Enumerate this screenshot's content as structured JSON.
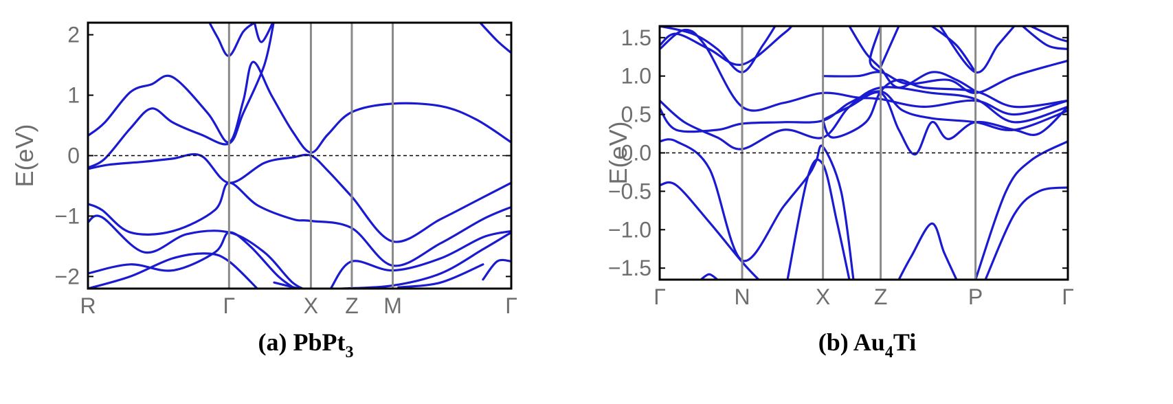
{
  "chart_data": [
    {
      "type": "line",
      "caption": {
        "prefix": "(a) PbPt",
        "sub": "3",
        "suffix": ""
      },
      "ylabel": "E(eV)",
      "ylim": [
        -2.2,
        2.2
      ],
      "yticks": [
        2,
        1,
        0,
        -1,
        -2
      ],
      "ytick_labels": [
        "2",
        "1",
        "0",
        "−1",
        "−2"
      ],
      "kpoints": [
        {
          "label": "R",
          "x": 0
        },
        {
          "label": "Γ",
          "x": 1
        },
        {
          "label": "X",
          "x": 1.58
        },
        {
          "label": "Z",
          "x": 1.87
        },
        {
          "label": "M",
          "x": 2.16
        },
        {
          "label": "Γ",
          "x": 3
        }
      ],
      "fermi_level": 0,
      "line_color": "#1a1ad0",
      "bands": [
        [
          [
            0,
            0.33
          ],
          [
            0.12,
            0.55
          ],
          [
            0.3,
            1.05
          ],
          [
            0.45,
            1.18
          ],
          [
            0.6,
            1.3
          ],
          [
            0.85,
            0.7
          ],
          [
            1,
            0.22
          ],
          [
            1.1,
            0.9
          ],
          [
            1.17,
            1.55
          ],
          [
            1.3,
            1.0
          ],
          [
            1.45,
            0.4
          ],
          [
            1.58,
            0.05
          ],
          [
            1.7,
            0.35
          ],
          [
            1.87,
            0.72
          ],
          [
            2.16,
            0.86
          ],
          [
            2.5,
            0.82
          ],
          [
            2.75,
            0.6
          ],
          [
            3,
            0.22
          ]
        ],
        [
          [
            0,
            -0.2
          ],
          [
            0.12,
            -0.05
          ],
          [
            0.3,
            0.45
          ],
          [
            0.45,
            0.78
          ],
          [
            0.6,
            0.55
          ],
          [
            0.8,
            0.35
          ],
          [
            1,
            0.2
          ],
          [
            1.1,
            0.7
          ],
          [
            1.25,
            1.5
          ],
          [
            1.32,
            2.25
          ]
        ],
        [
          [
            0,
            -0.22
          ],
          [
            0.15,
            -0.15
          ],
          [
            0.4,
            -0.1
          ],
          [
            0.6,
            -0.05
          ],
          [
            0.8,
            0
          ],
          [
            1,
            -0.45
          ],
          [
            1.25,
            -0.12
          ],
          [
            1.45,
            -0.03
          ],
          [
            1.58,
            0
          ],
          [
            1.7,
            -0.25
          ],
          [
            1.87,
            -0.68
          ],
          [
            2.16,
            -1.42
          ],
          [
            2.5,
            -1.05
          ],
          [
            2.75,
            -0.75
          ],
          [
            3,
            -0.45
          ]
        ],
        [
          [
            0,
            -0.8
          ],
          [
            0.1,
            -0.9
          ],
          [
            0.3,
            -1.27
          ],
          [
            0.6,
            -1.25
          ],
          [
            0.9,
            -0.9
          ],
          [
            1,
            -0.45
          ],
          [
            1.2,
            -0.82
          ],
          [
            1.45,
            -1.05
          ],
          [
            1.58,
            -1.08
          ],
          [
            1.87,
            -1.2
          ],
          [
            2.16,
            -1.82
          ],
          [
            2.5,
            -1.45
          ],
          [
            2.8,
            -1.05
          ],
          [
            3,
            -0.85
          ]
        ],
        [
          [
            0,
            -1.1
          ],
          [
            0.1,
            -1.02
          ],
          [
            0.4,
            -1.6
          ],
          [
            0.7,
            -1.3
          ],
          [
            1,
            -1.27
          ],
          [
            1.25,
            -1.6
          ],
          [
            1.45,
            -2.1
          ],
          [
            1.58,
            -2.25
          ]
        ],
        [
          [
            0,
            -1.95
          ],
          [
            0.3,
            -1.8
          ],
          [
            0.6,
            -1.9
          ],
          [
            0.9,
            -1.6
          ],
          [
            1,
            -1.27
          ],
          [
            1.15,
            -1.5
          ],
          [
            1.35,
            -2.0
          ],
          [
            1.5,
            -2.25
          ]
        ],
        [
          [
            0,
            -2.2
          ],
          [
            0.3,
            -2.0
          ],
          [
            0.6,
            -1.7
          ],
          [
            0.85,
            -1.62
          ],
          [
            1,
            -1.75
          ],
          [
            1.2,
            -2.2
          ]
        ],
        [
          [
            1.72,
            -2.2
          ],
          [
            1.87,
            -1.75
          ],
          [
            2.16,
            -1.9
          ],
          [
            2.5,
            -1.7
          ],
          [
            2.8,
            -1.35
          ],
          [
            3,
            -1.25
          ]
        ],
        [
          [
            1.8,
            -2.2
          ],
          [
            2.16,
            -2.15
          ],
          [
            2.5,
            -1.95
          ],
          [
            2.8,
            -1.55
          ],
          [
            3,
            -1.27
          ]
        ],
        [
          [
            2.8,
            -2.05
          ],
          [
            2.9,
            -1.75
          ],
          [
            3,
            -1.75
          ]
        ],
        [
          [
            2.76,
            2.25
          ],
          [
            2.9,
            1.9
          ],
          [
            3,
            1.7
          ]
        ],
        [
          [
            0.85,
            2.25
          ],
          [
            0.92,
            1.95
          ],
          [
            1,
            1.65
          ],
          [
            1.1,
            2.05
          ],
          [
            1.18,
            2.2
          ]
        ],
        [
          [
            1.18,
            2.2
          ],
          [
            1.23,
            1.88
          ],
          [
            1.32,
            2.25
          ]
        ],
        [
          [
            1.32,
            -2.1
          ],
          [
            1.58,
            -2.25
          ]
        ],
        [
          [
            2.2,
            -2.18
          ],
          [
            2.5,
            -2.1
          ],
          [
            2.8,
            -1.8
          ]
        ]
      ]
    },
    {
      "type": "line",
      "caption": {
        "prefix": "(b) Au",
        "sub": "4",
        "suffix": "Ti"
      },
      "ylabel": "E(eV)",
      "ylim": [
        -1.65,
        1.65
      ],
      "yticks": [
        1.5,
        1.0,
        0.5,
        0.0,
        -0.5,
        -1.0,
        -1.5
      ],
      "ytick_labels": [
        "1.5",
        "1.0",
        "0.5",
        "0.0",
        "−0.5",
        "−1.0",
        "−1.5"
      ],
      "kpoints": [
        {
          "label": "Γ",
          "x": 0
        },
        {
          "label": "N",
          "x": 1
        },
        {
          "label": "X",
          "x": 1.98
        },
        {
          "label": "Z",
          "x": 2.68
        },
        {
          "label": "P",
          "x": 3.83
        },
        {
          "label": "Γ",
          "x": 4.95
        }
      ],
      "fermi_level": 0,
      "line_color": "#1a1ad0",
      "bands": [
        [
          [
            0,
            1.35
          ],
          [
            0.3,
            1.6
          ],
          [
            0.55,
            1.4
          ],
          [
            1,
            0.6
          ],
          [
            1.5,
            0.65
          ],
          [
            1.98,
            0.78
          ],
          [
            2.4,
            0.72
          ],
          [
            2.68,
            0.7
          ],
          [
            3.2,
            0.6
          ],
          [
            3.83,
            0.68
          ],
          [
            4.3,
            0.5
          ],
          [
            4.95,
            0.68
          ]
        ],
        [
          [
            0,
            1.4
          ],
          [
            0.2,
            1.55
          ],
          [
            0.6,
            1.35
          ],
          [
            1,
            1.15
          ],
          [
            1.5,
            1.55
          ],
          [
            1.6,
            1.65
          ]
        ],
        [
          [
            0,
            1.65
          ],
          [
            0.4,
            1.55
          ],
          [
            0.7,
            1.35
          ],
          [
            1,
            1.05
          ],
          [
            1.25,
            1.4
          ],
          [
            1.4,
            1.65
          ]
        ],
        [
          [
            0,
            0.68
          ],
          [
            0.3,
            0.4
          ],
          [
            0.7,
            0.2
          ],
          [
            1,
            0.05
          ],
          [
            1.5,
            0.3
          ],
          [
            1.98,
            0.2
          ],
          [
            2.3,
            0.6
          ],
          [
            2.68,
            0.85
          ],
          [
            3.3,
            0.78
          ],
          [
            3.83,
            0.7
          ],
          [
            4.3,
            0.4
          ],
          [
            4.95,
            0.6
          ]
        ],
        [
          [
            0,
            0.58
          ],
          [
            0.2,
            0.3
          ],
          [
            0.7,
            0.3
          ],
          [
            1,
            0.38
          ],
          [
            1.5,
            0.4
          ],
          [
            1.98,
            0.42
          ],
          [
            2.3,
            0.65
          ],
          [
            2.68,
            0.8
          ],
          [
            2.95,
            0.55
          ],
          [
            3.3,
            0.45
          ],
          [
            3.83,
            0.4
          ],
          [
            4.3,
            0.3
          ],
          [
            4.95,
            0.55
          ]
        ],
        [
          [
            0,
            0.15
          ],
          [
            0.2,
            0.15
          ],
          [
            0.6,
            -0.2
          ],
          [
            1,
            -1.4
          ],
          [
            1.5,
            -0.7
          ],
          [
            1.8,
            -0.3
          ],
          [
            1.9,
            -0.1
          ],
          [
            1.98,
            0.08
          ],
          [
            2.2,
            -0.5
          ],
          [
            2.35,
            -1.65
          ]
        ],
        [
          [
            0,
            -0.42
          ],
          [
            0.2,
            -0.42
          ],
          [
            0.6,
            -0.9
          ],
          [
            1,
            -1.42
          ],
          [
            1.2,
            -1.65
          ]
        ],
        [
          [
            1.55,
            -1.65
          ],
          [
            1.8,
            -0.3
          ],
          [
            1.98,
            -0.15
          ],
          [
            2.15,
            -0.9
          ],
          [
            2.3,
            -1.65
          ]
        ],
        [
          [
            1.98,
            0.43
          ],
          [
            2.3,
            0.6
          ],
          [
            2.68,
            0.78
          ],
          [
            2.9,
            0.3
          ],
          [
            3.1,
            -0.02
          ],
          [
            3.3,
            0.4
          ],
          [
            3.5,
            0.18
          ],
          [
            3.83,
            0.4
          ],
          [
            4.3,
            0.3
          ],
          [
            4.6,
            0.25
          ],
          [
            4.95,
            0.6
          ]
        ],
        [
          [
            1.98,
            0.42
          ],
          [
            2.1,
            0.2
          ],
          [
            2.5,
            0.4
          ],
          [
            2.68,
            0.8
          ],
          [
            2.9,
            0.95
          ],
          [
            3.2,
            0.85
          ],
          [
            3.83,
            0.8
          ],
          [
            4.3,
            0.6
          ],
          [
            4.95,
            0.68
          ]
        ],
        [
          [
            1.98,
            1.0
          ],
          [
            2.4,
            1.0
          ],
          [
            2.68,
            1.05
          ],
          [
            3.0,
            0.9
          ],
          [
            3.5,
            0.95
          ],
          [
            3.83,
            0.78
          ],
          [
            4.3,
            1.0
          ],
          [
            4.95,
            1.2
          ]
        ],
        [
          [
            2.3,
            1.65
          ],
          [
            2.5,
            1.3
          ],
          [
            2.68,
            1.1
          ],
          [
            2.9,
            0.85
          ],
          [
            3.3,
            1.05
          ],
          [
            3.6,
            0.95
          ],
          [
            3.83,
            0.8
          ]
        ],
        [
          [
            2.68,
            1.12
          ],
          [
            2.9,
            1.65
          ]
        ],
        [
          [
            2.68,
            1.65
          ],
          [
            2.55,
            1.2
          ],
          [
            2.68,
            1.05
          ]
        ],
        [
          [
            3.4,
            1.65
          ],
          [
            3.83,
            1.05
          ],
          [
            4.1,
            1.4
          ],
          [
            4.3,
            1.65
          ]
        ],
        [
          [
            3.3,
            1.65
          ],
          [
            3.6,
            1.4
          ],
          [
            3.83,
            1.05
          ]
        ],
        [
          [
            4.4,
            1.65
          ],
          [
            4.7,
            1.4
          ],
          [
            4.95,
            1.35
          ]
        ],
        [
          [
            4.5,
            1.65
          ],
          [
            4.8,
            1.5
          ],
          [
            4.95,
            1.45
          ]
        ],
        [
          [
            2.9,
            -1.65
          ],
          [
            3.05,
            -1.35
          ],
          [
            3.3,
            -0.92
          ],
          [
            3.45,
            -1.3
          ],
          [
            3.6,
            -1.65
          ]
        ],
        [
          [
            3.83,
            -1.65
          ],
          [
            4.2,
            -0.5
          ],
          [
            4.5,
            -0.1
          ],
          [
            4.95,
            0.15
          ]
        ],
        [
          [
            3.95,
            -1.65
          ],
          [
            4.3,
            -0.8
          ],
          [
            4.6,
            -0.5
          ],
          [
            4.95,
            -0.45
          ]
        ],
        [
          [
            0.5,
            -1.65
          ],
          [
            0.6,
            -1.58
          ],
          [
            0.7,
            -1.65
          ]
        ]
      ]
    }
  ]
}
